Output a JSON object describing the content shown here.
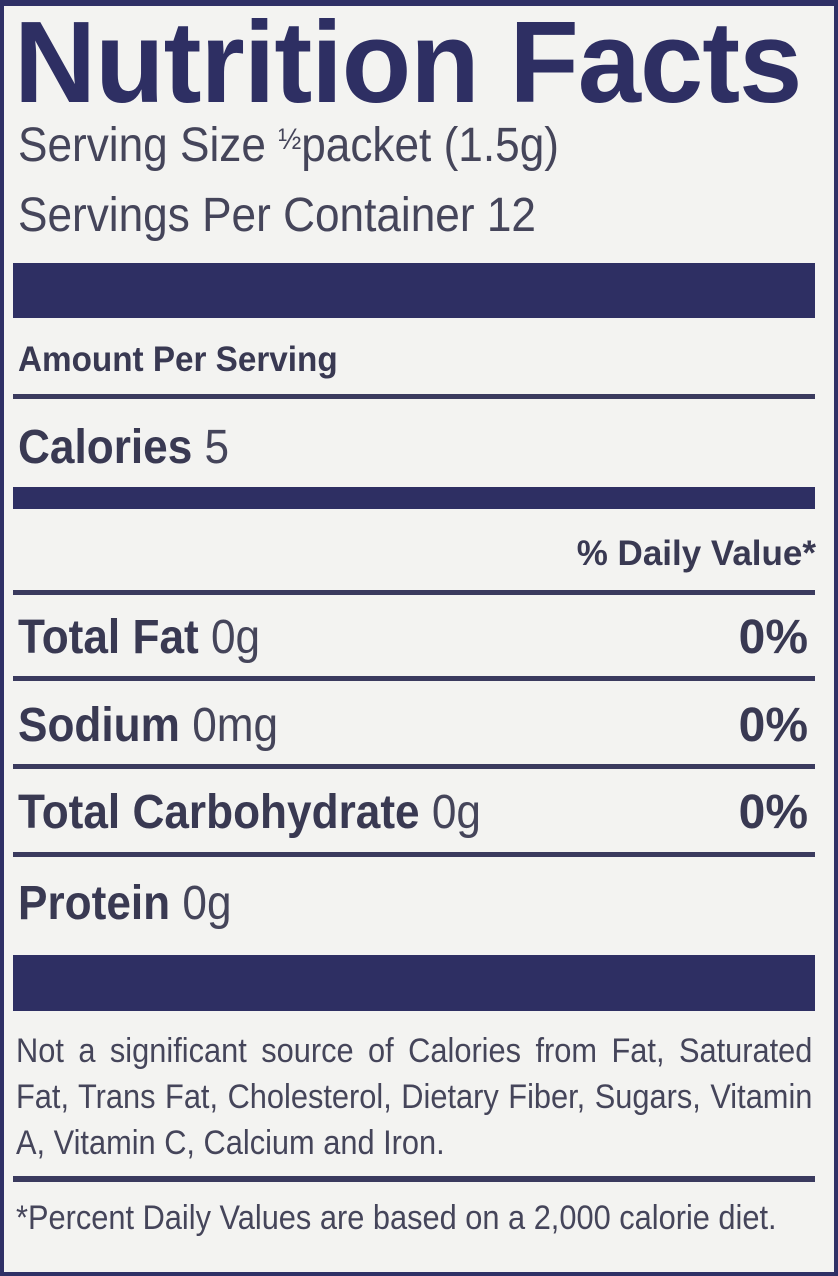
{
  "title": "Nutrition Facts",
  "serving_size": {
    "label": "Serving Size",
    "fraction": "½",
    "value": "packet (1.5g)"
  },
  "servings_per_container": {
    "label": "Servings Per Container",
    "value": "12"
  },
  "amount_per_serving": "Amount Per Serving",
  "calories": {
    "label": "Calories",
    "value": "5"
  },
  "daily_value_header": "% Daily Value*",
  "nutrients": [
    {
      "label": "Total Fat",
      "amount": "0g",
      "dv": "0%"
    },
    {
      "label": "Sodium",
      "amount": "0mg",
      "dv": "0%"
    },
    {
      "label": "Total Carbohydrate",
      "amount": "0g",
      "dv": "0%"
    },
    {
      "label": "Protein",
      "amount": "0g",
      "dv": ""
    }
  ],
  "not_significant_note": "Not a significant source of Calories from Fat, Saturated Fat, Trans Fat, Cholesterol, Dietary Fiber, Sugars, Vitamin A, Vitamin C, Calcium and Iron.",
  "footnote": "*Percent Daily Values are based on a 2,000 calorie diet.",
  "colors": {
    "ink": "#2e2f63",
    "text": "#45455a",
    "background": "#f3f3f1"
  }
}
